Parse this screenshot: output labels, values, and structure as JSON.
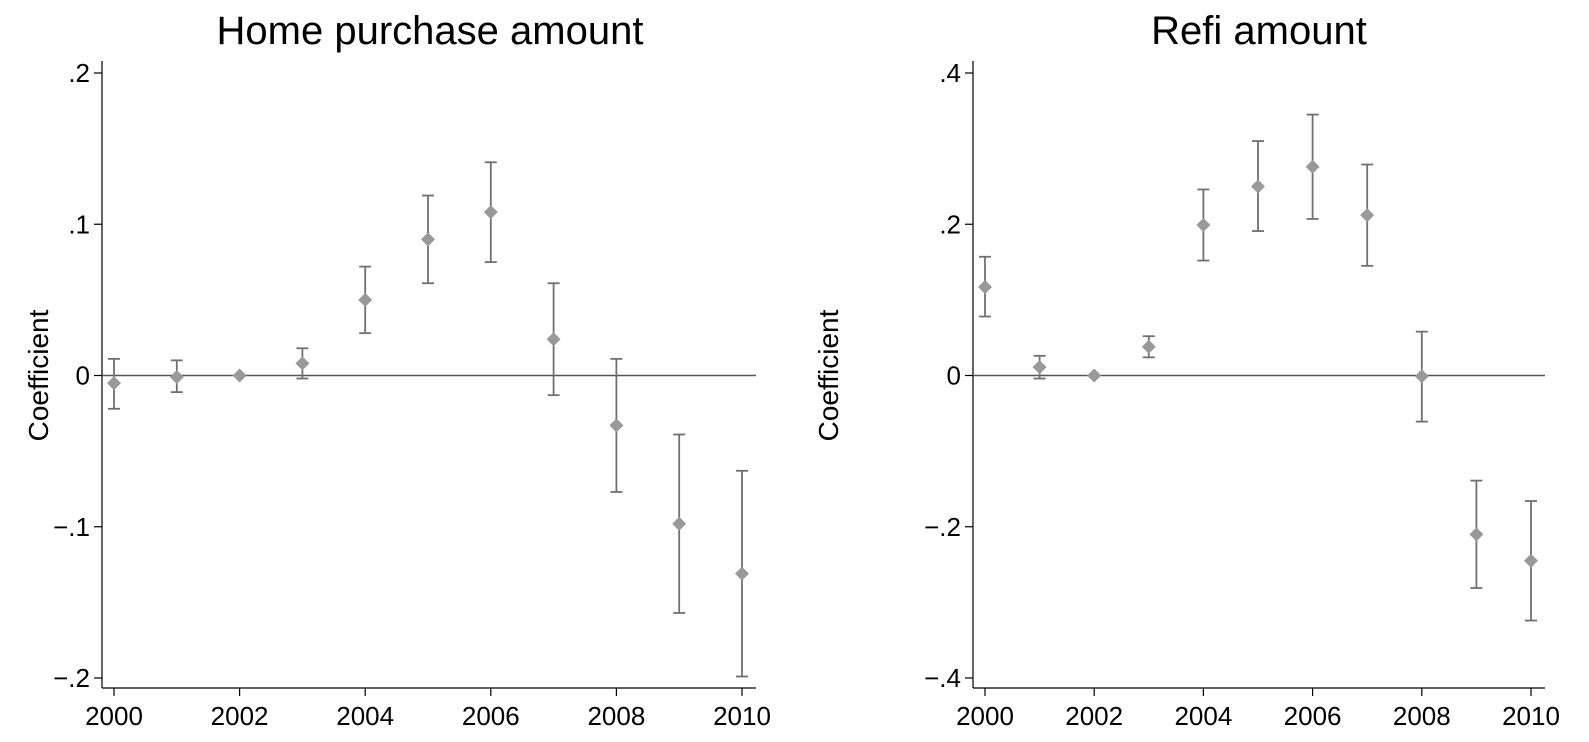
{
  "chart_data": [
    {
      "type": "scatter",
      "title": "Home purchase amount",
      "xlabel": "",
      "ylabel": "Coefficient",
      "xlim": [
        2000,
        2010
      ],
      "ylim": [
        -0.2,
        0.2
      ],
      "xticks": [
        2000,
        2002,
        2004,
        2006,
        2008,
        2010
      ],
      "xtick_labels": [
        "2000",
        "2002",
        "2004",
        "2006",
        "2008",
        "2010"
      ],
      "yticks": [
        -0.2,
        -0.1,
        0,
        0.1,
        0.2
      ],
      "ytick_labels": [
        "−.2",
        "−.1",
        "0",
        ".1",
        ".2"
      ],
      "grid": false,
      "reference_line_y": 0,
      "marker": "diamond",
      "marker_color": "#999999",
      "errorbar_color": "#707070",
      "points": [
        {
          "x": 2000,
          "y": -0.005,
          "lo": -0.022,
          "hi": 0.011
        },
        {
          "x": 2001,
          "y": -0.001,
          "lo": -0.011,
          "hi": 0.01
        },
        {
          "x": 2002,
          "y": 0.0,
          "lo": 0.0,
          "hi": 0.0
        },
        {
          "x": 2003,
          "y": 0.008,
          "lo": -0.002,
          "hi": 0.018
        },
        {
          "x": 2004,
          "y": 0.05,
          "lo": 0.028,
          "hi": 0.072
        },
        {
          "x": 2005,
          "y": 0.09,
          "lo": 0.061,
          "hi": 0.119
        },
        {
          "x": 2006,
          "y": 0.108,
          "lo": 0.075,
          "hi": 0.141
        },
        {
          "x": 2007,
          "y": 0.024,
          "lo": -0.013,
          "hi": 0.061
        },
        {
          "x": 2008,
          "y": -0.033,
          "lo": -0.077,
          "hi": 0.011
        },
        {
          "x": 2009,
          "y": -0.098,
          "lo": -0.157,
          "hi": -0.039
        },
        {
          "x": 2010,
          "y": -0.131,
          "lo": -0.199,
          "hi": -0.063
        }
      ]
    },
    {
      "type": "scatter",
      "title": "Refi amount",
      "xlabel": "",
      "ylabel": "Coefficient",
      "xlim": [
        2000,
        2010
      ],
      "ylim": [
        -0.4,
        0.4
      ],
      "xticks": [
        2000,
        2002,
        2004,
        2006,
        2008,
        2010
      ],
      "xtick_labels": [
        "2000",
        "2002",
        "2004",
        "2006",
        "2008",
        "2010"
      ],
      "yticks": [
        -0.4,
        -0.2,
        0,
        0.2,
        0.4
      ],
      "ytick_labels": [
        "−.4",
        "−.2",
        "0",
        ".2",
        ".4"
      ],
      "grid": false,
      "reference_line_y": 0,
      "marker": "diamond",
      "marker_color": "#999999",
      "errorbar_color": "#707070",
      "points": [
        {
          "x": 2000,
          "y": 0.117,
          "lo": 0.078,
          "hi": 0.157
        },
        {
          "x": 2001,
          "y": 0.011,
          "lo": -0.004,
          "hi": 0.026
        },
        {
          "x": 2002,
          "y": 0.0,
          "lo": 0.0,
          "hi": 0.0
        },
        {
          "x": 2003,
          "y": 0.038,
          "lo": 0.024,
          "hi": 0.052
        },
        {
          "x": 2004,
          "y": 0.199,
          "lo": 0.152,
          "hi": 0.246
        },
        {
          "x": 2005,
          "y": 0.25,
          "lo": 0.191,
          "hi": 0.31
        },
        {
          "x": 2006,
          "y": 0.276,
          "lo": 0.207,
          "hi": 0.345
        },
        {
          "x": 2007,
          "y": 0.212,
          "lo": 0.145,
          "hi": 0.279
        },
        {
          "x": 2008,
          "y": -0.001,
          "lo": -0.061,
          "hi": 0.058
        },
        {
          "x": 2009,
          "y": -0.21,
          "lo": -0.281,
          "hi": -0.139
        },
        {
          "x": 2010,
          "y": -0.245,
          "lo": -0.324,
          "hi": -0.166
        }
      ]
    }
  ]
}
